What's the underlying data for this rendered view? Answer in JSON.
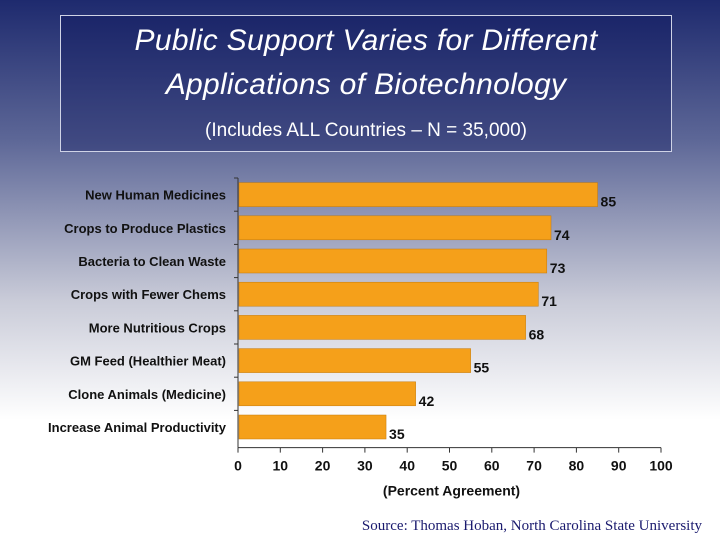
{
  "title": {
    "line1": "Public Support Varies for Different",
    "line2": "Applications of Biotechnology",
    "subtitle": "(Includes ALL Countries – N = 35,000)"
  },
  "chart_data": {
    "type": "bar",
    "orientation": "horizontal",
    "categories": [
      "New Human Medicines",
      "Crops to Produce Plastics",
      "Bacteria to Clean Waste",
      "Crops with Fewer Chems",
      "More Nutritious Crops",
      "GM Feed (Healthier Meat)",
      "Clone Animals (Medicine)",
      "Increase Animal Productivity"
    ],
    "values": [
      85,
      74,
      73,
      71,
      68,
      55,
      42,
      35
    ],
    "xlabel": "(Percent Agreement)",
    "ylabel": "",
    "xlim": [
      0,
      100
    ],
    "xticks": [
      0,
      10,
      20,
      30,
      40,
      50,
      60,
      70,
      80,
      90,
      100
    ],
    "bar_color": "#f5a01a",
    "grid": false
  },
  "source": "Source: Thomas Hoban, North Carolina State University"
}
